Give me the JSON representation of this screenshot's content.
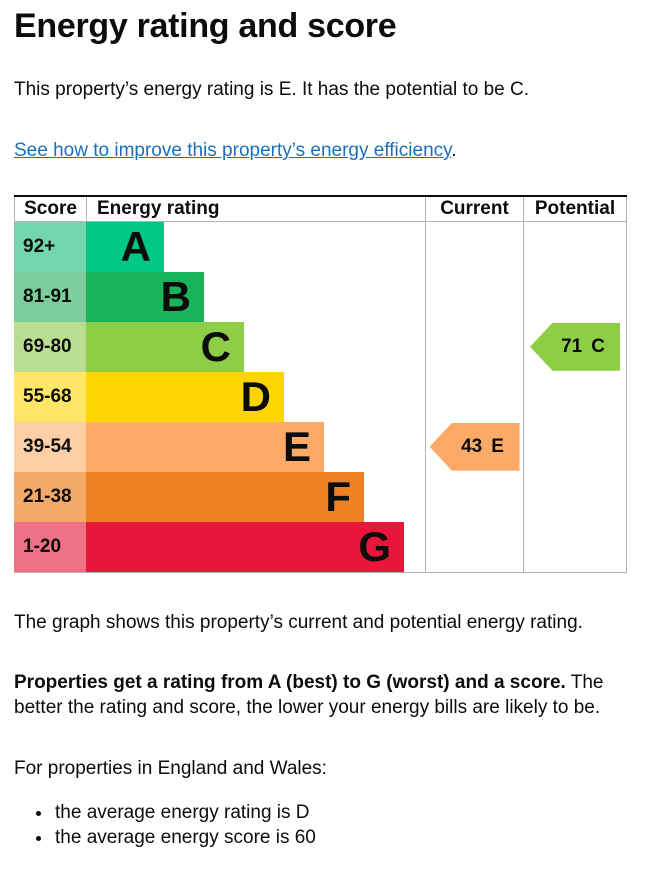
{
  "colors": {
    "text": "#0b0c0c",
    "link": "#1d70b8",
    "table_border_dark": "#0b0c0c",
    "table_border_grey": "#b1b4b6"
  },
  "page": {
    "title": "Energy rating and score",
    "intro": "This property’s energy rating is E. It has the potential to be C.",
    "link_text": "See how to improve this property’s energy efficiency",
    "link_suffix": ".",
    "graph_caption": "The graph shows this property’s current and potential energy rating.",
    "explain_bold": "Properties get a rating from A (best) to G (worst) and a score.",
    "explain_rest": " The better the rating and score, the lower your energy bills are likely to be.",
    "region_line": "For properties in England and Wales:",
    "bullets": [
      "the average energy rating is D",
      "the average energy score is 60"
    ]
  },
  "chart_data": {
    "type": "bar",
    "title": "Energy rating and score",
    "columns": [
      "Score",
      "Energy rating",
      "Current",
      "Potential"
    ],
    "bands": [
      {
        "rating": "A",
        "score_range": "92+",
        "color": "#00c781",
        "score_color": "#73d6ae",
        "bar_length": 78
      },
      {
        "rating": "B",
        "score_range": "81-91",
        "color": "#19b459",
        "score_color": "#7bce9b",
        "bar_length": 118
      },
      {
        "rating": "C",
        "score_range": "69-80",
        "color": "#8dce46",
        "score_color": "#bade91",
        "bar_length": 158
      },
      {
        "rating": "D",
        "score_range": "55-68",
        "color": "#ffd500",
        "score_color": "#ffe664",
        "bar_length": 198
      },
      {
        "rating": "E",
        "score_range": "39-54",
        "color": "#fcaa65",
        "score_color": "#fccfa6",
        "bar_length": 238
      },
      {
        "rating": "F",
        "score_range": "21-38",
        "color": "#ef8023",
        "score_color": "#f4a86a",
        "bar_length": 278
      },
      {
        "rating": "G",
        "score_range": "1-20",
        "color": "#e9153b",
        "score_color": "#ef7185",
        "bar_length": 318
      }
    ],
    "current": {
      "score": "43",
      "rating": "E",
      "color": "#fcaa65"
    },
    "potential": {
      "score": "71",
      "rating": "C",
      "color": "#8dce46"
    },
    "legend_position": "none",
    "grid": false
  }
}
